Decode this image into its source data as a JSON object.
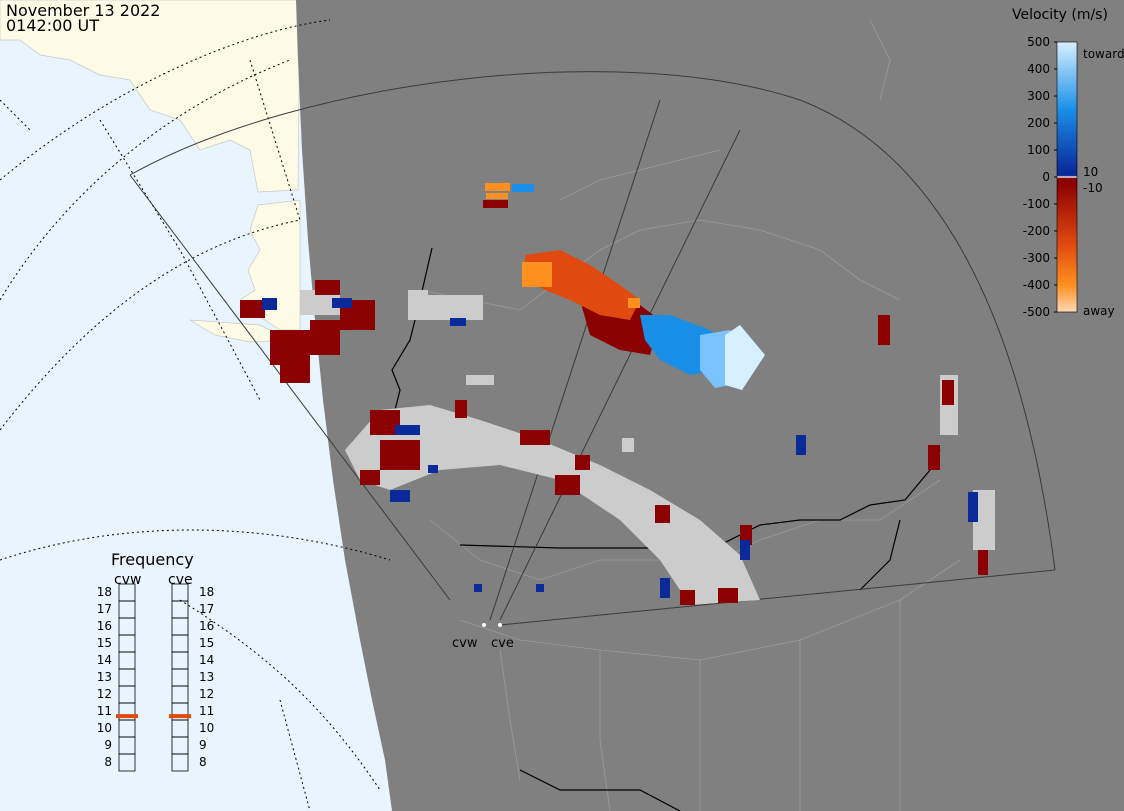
{
  "header": {
    "date": "November 13 2022",
    "time": "0142:00 UT"
  },
  "legend": {
    "title": "Velocity (m/s)",
    "ticks": [
      "500",
      "400",
      "300",
      "200",
      "100",
      "0",
      "-100",
      "-200",
      "-300",
      "-400",
      "-500"
    ],
    "side_labels": {
      "toward": "toward",
      "away": "away",
      "plus": "10",
      "minus": "-10"
    },
    "colors": {
      "toward_top": "#d7f0ff",
      "toward_mid": "#1a8fe8",
      "toward_low": "#0a2a9a",
      "near_zero": "#ffffff",
      "away_low": "#8b0000",
      "away_mid": "#e04a10",
      "away_high": "#ff9020",
      "away_top": "#ffd9b3"
    }
  },
  "frequency": {
    "title": "Frequency",
    "radars": [
      {
        "name": "cvw",
        "freq_mhz": 10.7
      },
      {
        "name": "cve",
        "freq_mhz": 10.7
      }
    ],
    "scale": [
      "18",
      "17",
      "16",
      "15",
      "14",
      "13",
      "12",
      "11",
      "10",
      "9",
      "8"
    ]
  },
  "radar_sites": [
    {
      "name": "cvw"
    },
    {
      "name": "cve"
    }
  ],
  "map_colors": {
    "ocean": "#e8f5ff",
    "land_daylight": "#fdfbe6",
    "night": "#808080",
    "ground_scatter": "#cccccc"
  }
}
